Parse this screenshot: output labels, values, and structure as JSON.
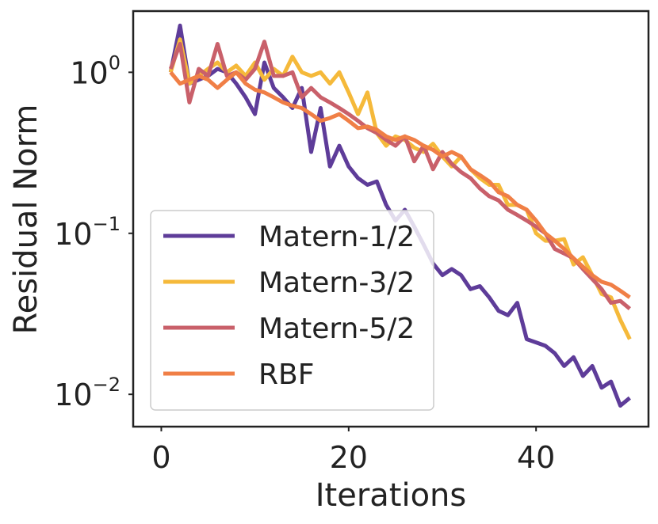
{
  "chart_data": {
    "type": "line",
    "title": "",
    "xlabel": "Iterations",
    "ylabel": "Residual Norm",
    "xlim": [
      -3,
      52
    ],
    "ylim": [
      0.0063,
      2.4
    ],
    "yscale": "log",
    "grid": false,
    "x_ticks": [
      0,
      20,
      40
    ],
    "x_tick_labels": [
      "0",
      "20",
      "40"
    ],
    "y_ticks": [
      1,
      0.1,
      0.01
    ],
    "y_tick_labels": [
      {
        "base": "10",
        "exp": "0"
      },
      {
        "base": "10",
        "exp": "−1"
      },
      {
        "base": "10",
        "exp": "−2"
      }
    ],
    "legend_position": "lower-left",
    "x": [
      1,
      2,
      3,
      4,
      5,
      6,
      7,
      8,
      9,
      10,
      11,
      12,
      13,
      14,
      15,
      16,
      17,
      18,
      19,
      20,
      21,
      22,
      23,
      24,
      25,
      26,
      27,
      28,
      29,
      30,
      31,
      32,
      33,
      34,
      35,
      36,
      37,
      38,
      39,
      40,
      41,
      42,
      43,
      44,
      45,
      46,
      47,
      48,
      49,
      50
    ],
    "series": [
      {
        "name": "Matern-1/2",
        "color": "#5e3c99",
        "values": [
          1.0,
          1.95,
          0.85,
          0.9,
          0.95,
          1.05,
          1.0,
          0.85,
          0.7,
          0.55,
          1.15,
          0.8,
          0.7,
          0.6,
          0.8,
          0.32,
          0.6,
          0.26,
          0.35,
          0.26,
          0.22,
          0.2,
          0.21,
          0.15,
          0.12,
          0.14,
          0.11,
          0.085,
          0.065,
          0.055,
          0.06,
          0.055,
          0.045,
          0.047,
          0.04,
          0.033,
          0.031,
          0.037,
          0.022,
          0.021,
          0.02,
          0.018,
          0.015,
          0.017,
          0.013,
          0.015,
          0.011,
          0.012,
          0.0085,
          0.0095
        ]
      },
      {
        "name": "Matern-3/2",
        "color": "#f5b93a",
        "values": [
          1.0,
          1.6,
          0.85,
          0.95,
          1.05,
          1.15,
          1.0,
          1.1,
          0.95,
          1.15,
          0.9,
          1.05,
          0.95,
          1.25,
          1.0,
          0.95,
          1.0,
          0.85,
          1.0,
          0.75,
          0.55,
          0.75,
          0.42,
          0.35,
          0.4,
          0.38,
          0.34,
          0.32,
          0.36,
          0.3,
          0.26,
          0.3,
          0.25,
          0.22,
          0.2,
          0.2,
          0.15,
          0.15,
          0.14,
          0.1,
          0.09,
          0.09,
          0.092,
          0.064,
          0.071,
          0.055,
          0.042,
          0.04,
          0.029,
          0.022
        ]
      },
      {
        "name": "Matern-5/2",
        "color": "#c9606a",
        "values": [
          1.05,
          1.5,
          0.65,
          1.05,
          0.95,
          1.5,
          0.95,
          1.0,
          0.9,
          1.05,
          1.55,
          0.95,
          0.95,
          1.0,
          0.7,
          0.8,
          0.7,
          0.65,
          0.6,
          0.55,
          0.5,
          0.45,
          0.42,
          0.38,
          0.35,
          0.4,
          0.28,
          0.35,
          0.25,
          0.32,
          0.27,
          0.24,
          0.22,
          0.19,
          0.17,
          0.16,
          0.14,
          0.13,
          0.12,
          0.11,
          0.1,
          0.08,
          0.075,
          0.07,
          0.06,
          0.052,
          0.045,
          0.037,
          0.038,
          0.034
        ]
      },
      {
        "name": "RBF",
        "color": "#f07f46",
        "values": [
          1.0,
          0.85,
          0.9,
          0.95,
          0.9,
          0.8,
          0.9,
          1.0,
          0.85,
          0.78,
          0.75,
          0.7,
          0.65,
          0.62,
          0.6,
          0.55,
          0.5,
          0.52,
          0.55,
          0.5,
          0.45,
          0.46,
          0.44,
          0.4,
          0.38,
          0.4,
          0.38,
          0.35,
          0.33,
          0.3,
          0.32,
          0.3,
          0.25,
          0.23,
          0.21,
          0.18,
          0.17,
          0.15,
          0.14,
          0.12,
          0.1,
          0.09,
          0.08,
          0.07,
          0.062,
          0.055,
          0.05,
          0.048,
          0.044,
          0.04
        ]
      }
    ]
  }
}
